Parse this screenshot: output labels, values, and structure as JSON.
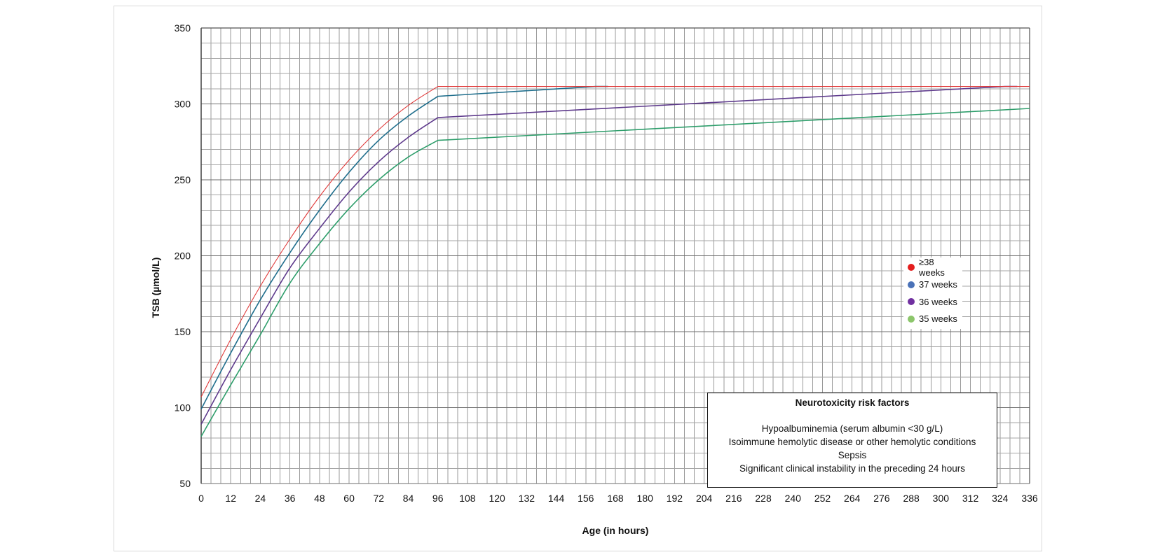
{
  "chart_data": {
    "type": "line",
    "title": "",
    "xlabel": "Age (in hours)",
    "ylabel": "TSB (µmol/L)",
    "xlim": [
      0,
      336
    ],
    "ylim": [
      50,
      350
    ],
    "x_ticks": [
      0,
      12,
      24,
      36,
      48,
      60,
      72,
      84,
      96,
      108,
      120,
      132,
      144,
      156,
      168,
      180,
      192,
      204,
      216,
      228,
      240,
      252,
      264,
      276,
      288,
      300,
      312,
      324,
      336
    ],
    "y_ticks": [
      50,
      100,
      150,
      200,
      250,
      300,
      350
    ],
    "grid": true,
    "minor_grid_x_step": 4,
    "minor_grid_y_step": 10,
    "legend_position": "right-middle",
    "series": [
      {
        "name": "≥38 weeks",
        "line_color": "#e03a3a",
        "marker_color": "#e41e1e",
        "x": [
          0,
          12,
          24,
          36,
          48,
          60,
          72,
          84,
          96,
          336
        ],
        "y": [
          107,
          145,
          180,
          211,
          239,
          263,
          283,
          299,
          311.5,
          311.5
        ]
      },
      {
        "name": "37 weeks",
        "line_color": "#1f6e8c",
        "marker_color": "#4a72b8",
        "x": [
          0,
          12,
          24,
          36,
          48,
          60,
          72,
          84,
          96,
          160,
          165
        ],
        "y": [
          99,
          136,
          171,
          202,
          230,
          255,
          276,
          292,
          305,
          311.5,
          311.5
        ]
      },
      {
        "name": "36 weeks",
        "line_color": "#5e3a8c",
        "marker_color": "#7030a0",
        "x": [
          0,
          12,
          24,
          36,
          48,
          60,
          72,
          84,
          96,
          326,
          331
        ],
        "y": [
          89,
          125,
          159,
          192,
          218,
          242,
          262,
          278,
          291,
          311.5,
          311.5
        ]
      },
      {
        "name": "35 weeks",
        "line_color": "#2e9e6b",
        "marker_color": "#8cc66b",
        "x": [
          0,
          12,
          24,
          36,
          48,
          60,
          72,
          84,
          96,
          336
        ],
        "y": [
          81,
          115,
          148,
          182,
          208,
          231,
          250,
          265,
          276,
          297
        ]
      }
    ],
    "annotation": {
      "title": "Neurotoxicity risk factors",
      "lines": [
        "Hypoalbuminemia (serum albumin <30 g/L)",
        "Isoimmune hemolytic disease or other hemolytic conditions",
        "Sepsis",
        "Significant clinical instability in the preceding 24 hours"
      ]
    }
  }
}
